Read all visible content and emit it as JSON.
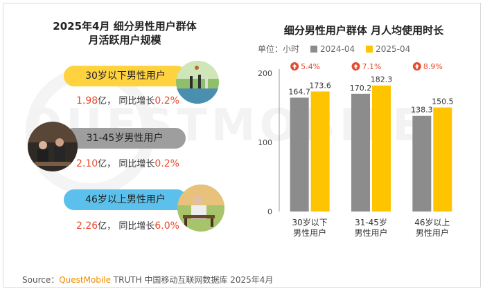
{
  "left_panel": {
    "title_line1": "2025年4月 细分男性用户群体",
    "title_line2": "月活跃用户规模",
    "segments": [
      {
        "label": "30岁以下男性用户",
        "value": "1.98",
        "unit": "亿，",
        "growth_label": "同比增长",
        "growth": "0.2%",
        "color": "#ffd23f"
      },
      {
        "label": "31-45岁男性用户",
        "value": "2.10",
        "unit": "亿，",
        "growth_label": "同比增长",
        "growth": "0.2%",
        "color": "#9e9e9e"
      },
      {
        "label": "46岁以上男性用户",
        "value": "2.26",
        "unit": "亿，",
        "growth_label": "同比增长",
        "growth": "6.0%",
        "color": "#5bc0eb"
      }
    ]
  },
  "watermark": "QUESTMOBILE",
  "chart_title": "细分男性用户群体 月人均使用时长",
  "unit_label": "单位：小时",
  "chart_data": {
    "type": "bar",
    "title": "细分男性用户群体 月人均使用时长",
    "categories": [
      "30岁以下男性用户",
      "31-45岁男性用户",
      "46岁以上男性用户"
    ],
    "category_lines": [
      [
        "30岁以下",
        "男性用户"
      ],
      [
        "31-45岁",
        "男性用户"
      ],
      [
        "46岁以上",
        "男性用户"
      ]
    ],
    "series": [
      {
        "name": "2024-04",
        "values": [
          164.7,
          170.2,
          138.3
        ],
        "color": "#8c8c8c"
      },
      {
        "name": "2025-04",
        "values": [
          173.6,
          182.3,
          150.5
        ],
        "color": "#ffc400"
      }
    ],
    "growth": [
      "5.4%",
      "7.1%",
      "8.9%"
    ],
    "ylim": [
      0,
      200
    ],
    "yticks": [
      0,
      100,
      200
    ],
    "ylabel": "单位：小时",
    "legend": "top",
    "grid": false
  },
  "colors": {
    "accent_red": "#e64a2e",
    "growth_circle": "#e64a2e"
  },
  "source": {
    "prefix": "Source：",
    "brand": "QuestMobile",
    "rest": " TRUTH 中国移动互联网数据库 2025年4月"
  }
}
